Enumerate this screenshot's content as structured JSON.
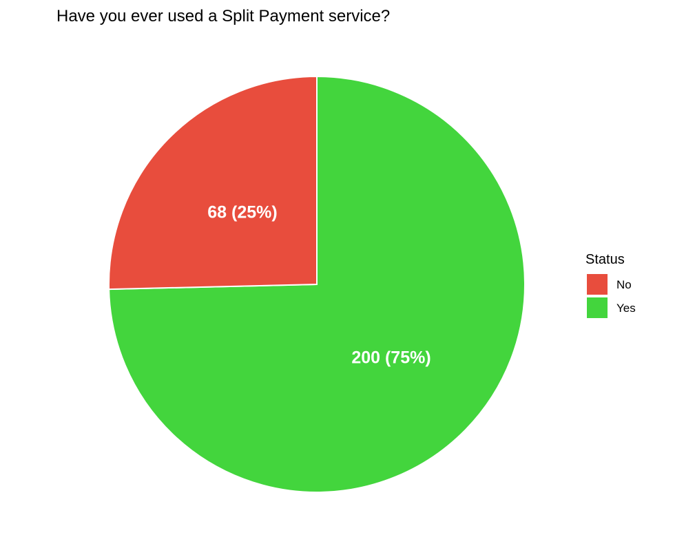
{
  "chart_data": {
    "type": "pie",
    "title": "Have you ever used a Split Payment service?",
    "categories": [
      "No",
      "Yes"
    ],
    "values": [
      68,
      200
    ],
    "percentages": [
      25,
      75
    ],
    "labels": [
      "68 (25%)",
      "200 (75%)"
    ],
    "colors": [
      "#E84D3D",
      "#43D53D"
    ],
    "legend": {
      "title": "Status",
      "placement": "right",
      "entries": [
        "No",
        "Yes"
      ]
    }
  }
}
